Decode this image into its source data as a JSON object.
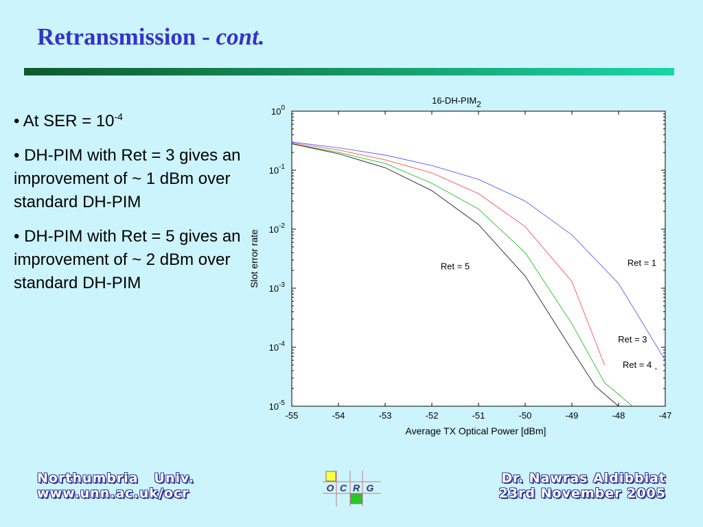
{
  "slide": {
    "title_main": "Retransmission - ",
    "title_italic": "cont."
  },
  "bullets": [
    {
      "prefix": "• At SER = 10",
      "sup": "-4"
    },
    {
      "text": "• DH-PIM with Ret = 3 gives an improvement of ~ 1 dBm over standard DH-PIM"
    },
    {
      "text": "• DH-PIM with Ret = 5 gives an improvement of ~ 2 dBm over standard DH-PIM"
    }
  ],
  "footer": {
    "left_line1": "Northumbria   Univ.",
    "left_line2": "www.unn.ac.uk/ocr",
    "right_line1": "Dr. Nawras Aldibbiat",
    "right_line2": "23rd November 2005",
    "logo_letters": [
      "O",
      "C",
      "R",
      "G"
    ]
  },
  "colors": {
    "background": "#ccf4fc",
    "title": "#3333cc",
    "footer_outline": "#333399",
    "ret1": "#5a5aff",
    "ret3": "#ff5050",
    "ret4": "#22c022",
    "ret5": "#202020"
  },
  "chart_data": {
    "type": "line",
    "title": "16-DH-PIM",
    "title_subscript": "2",
    "xlabel": "Average TX Optical Power [dBm]",
    "ylabel": "Slot error rate",
    "xlim": [
      -55,
      -47
    ],
    "ylim_log10": [
      -5,
      0
    ],
    "y_scale": "log",
    "x_ticks": [
      "-55",
      "-54",
      "-53",
      "-52",
      "-51",
      "-50",
      "-49",
      "-48",
      "-47"
    ],
    "y_tick_base": "10",
    "y_tick_exponents": [
      "0",
      "-1",
      "-2",
      "-3",
      "-4",
      "-5"
    ],
    "grid": false,
    "series": [
      {
        "name": "Ret = 1",
        "color": "#5a5aff",
        "x": [
          -55,
          -54,
          -53,
          -52,
          -51,
          -50,
          -49,
          -48,
          -47
        ],
        "y": [
          0.3,
          0.24,
          0.18,
          0.12,
          0.07,
          0.03,
          0.008,
          0.0012,
          6e-05
        ]
      },
      {
        "name": "Ret = 3",
        "color": "#ff5050",
        "x": [
          -55,
          -54,
          -53,
          -52,
          -51,
          -50,
          -49,
          -48.3
        ],
        "y": [
          0.29,
          0.22,
          0.15,
          0.09,
          0.04,
          0.011,
          0.0013,
          5e-05
        ]
      },
      {
        "name": "Ret = 4",
        "color": "#22c022",
        "x": [
          -55,
          -54,
          -53,
          -52,
          -51,
          -50,
          -49,
          -48.3,
          -47.7
        ],
        "y": [
          0.28,
          0.2,
          0.13,
          0.06,
          0.022,
          0.004,
          0.00025,
          2.5e-05,
          1e-05
        ]
      },
      {
        "name": "Ret = 5",
        "color": "#202020",
        "x": [
          -55,
          -54,
          -53,
          -52,
          -51,
          -50,
          -49,
          -48.5,
          -48.0
        ],
        "y": [
          0.28,
          0.19,
          0.11,
          0.045,
          0.012,
          0.0016,
          9e-05,
          2.2e-05,
          1e-05
        ]
      }
    ],
    "annotations": [
      {
        "text": "Ret = 5",
        "x": -51.5,
        "y": 0.0021
      },
      {
        "text": "Ret = 1",
        "x": -47.5,
        "y": 0.0024
      },
      {
        "text": "Ret = 3",
        "x": -47.7,
        "y": 0.00012
      },
      {
        "text": "Ret = 4",
        "x": -47.6,
        "y": 4.5e-05
      }
    ],
    "marker_point": {
      "x": -47.2,
      "y": 4.3e-05,
      "color": "#ff0000"
    }
  }
}
